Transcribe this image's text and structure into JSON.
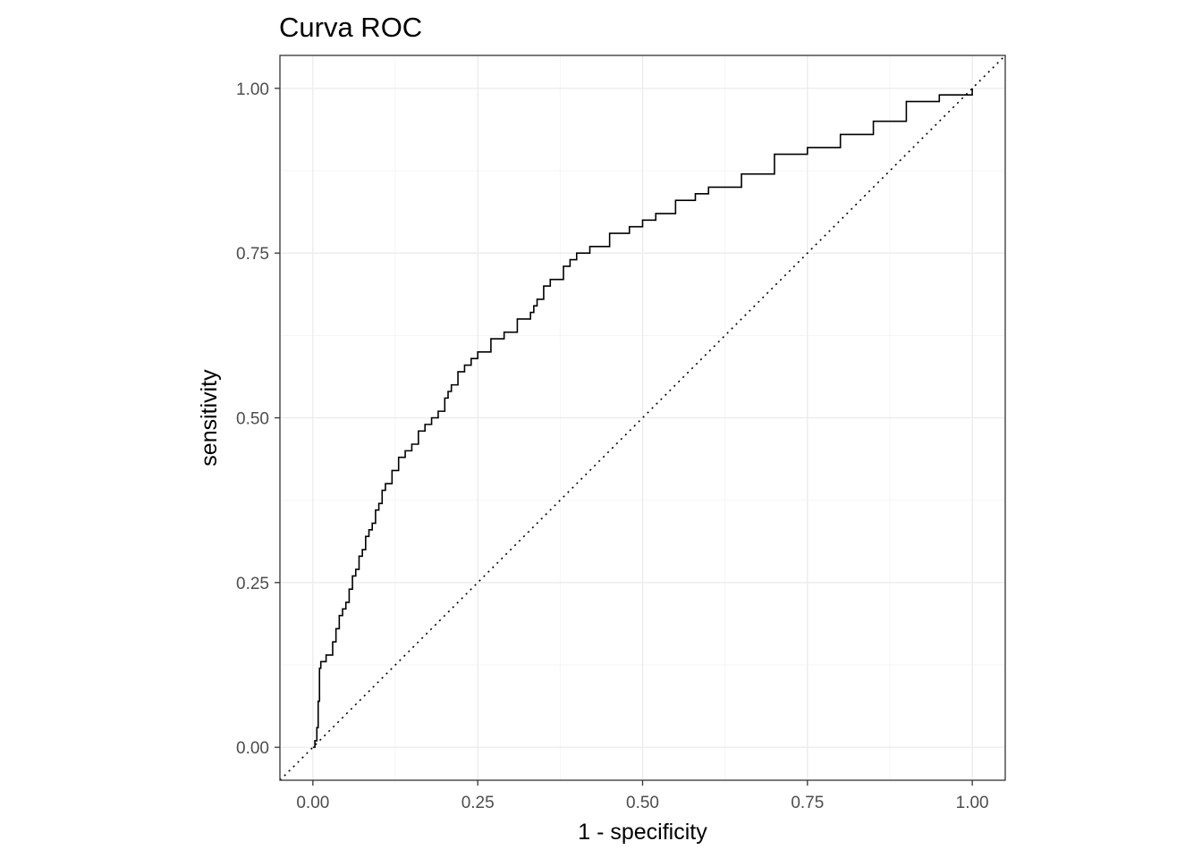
{
  "chart_data": {
    "type": "line",
    "title": "Curva ROC",
    "xlabel": "1 - specificity",
    "ylabel": "sensitivity",
    "xlim": [
      -0.05,
      1.05
    ],
    "ylim": [
      -0.05,
      1.05
    ],
    "x_ticks": [
      0,
      0.25,
      0.5,
      0.75,
      1
    ],
    "x_tick_labels": [
      "0.00",
      "0.25",
      "0.50",
      "0.75",
      "1.00"
    ],
    "y_ticks": [
      0,
      0.25,
      0.5,
      0.75,
      1
    ],
    "y_tick_labels": [
      "0.00",
      "0.25",
      "0.50",
      "0.75",
      "1.00"
    ],
    "grid": true,
    "legend": "none",
    "colors": {
      "curve": "#000000",
      "reference": "#000000",
      "panel_border": "#333333",
      "grid": "#ebebeb"
    },
    "series": [
      {
        "style": "step",
        "x": [
          0.0,
          0.003,
          0.006,
          0.008,
          0.01,
          0.012,
          0.02,
          0.03,
          0.035,
          0.04,
          0.045,
          0.05,
          0.055,
          0.06,
          0.065,
          0.07,
          0.075,
          0.08,
          0.085,
          0.09,
          0.095,
          0.1,
          0.105,
          0.11,
          0.12,
          0.13,
          0.14,
          0.15,
          0.16,
          0.17,
          0.18,
          0.19,
          0.2,
          0.205,
          0.21,
          0.22,
          0.23,
          0.24,
          0.25,
          0.27,
          0.29,
          0.31,
          0.33,
          0.335,
          0.34,
          0.35,
          0.36,
          0.38,
          0.39,
          0.4,
          0.42,
          0.45,
          0.48,
          0.5,
          0.52,
          0.55,
          0.58,
          0.6,
          0.65,
          0.7,
          0.75,
          0.8,
          0.85,
          0.9,
          0.95,
          1.0
        ],
        "y": [
          0.0,
          0.01,
          0.03,
          0.07,
          0.12,
          0.13,
          0.14,
          0.16,
          0.18,
          0.2,
          0.21,
          0.22,
          0.24,
          0.26,
          0.27,
          0.29,
          0.3,
          0.32,
          0.33,
          0.34,
          0.36,
          0.37,
          0.39,
          0.4,
          0.42,
          0.44,
          0.45,
          0.46,
          0.48,
          0.49,
          0.5,
          0.51,
          0.53,
          0.54,
          0.55,
          0.57,
          0.58,
          0.59,
          0.6,
          0.62,
          0.63,
          0.65,
          0.66,
          0.67,
          0.68,
          0.7,
          0.71,
          0.73,
          0.74,
          0.75,
          0.76,
          0.78,
          0.79,
          0.8,
          0.81,
          0.83,
          0.84,
          0.85,
          0.87,
          0.9,
          0.91,
          0.93,
          0.95,
          0.98,
          0.99,
          1.0
        ]
      },
      {
        "style": "dotted",
        "x": [
          -0.05,
          1.05
        ],
        "y": [
          -0.05,
          1.05
        ]
      }
    ]
  }
}
